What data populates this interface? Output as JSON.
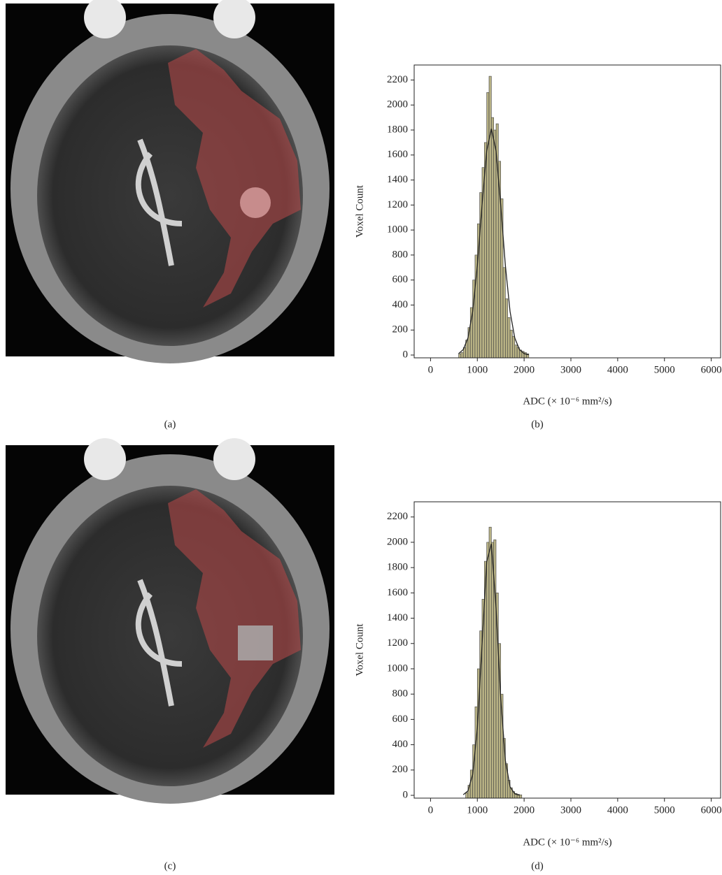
{
  "image_panels": [
    {
      "caption": "(a)"
    },
    {
      "caption": "(c)"
    }
  ],
  "chart_data": [
    {
      "type": "histogram",
      "caption": "(b)",
      "x_label": "ADC (× 10⁻⁶ mm²/s)",
      "y_label": "Voxel Count",
      "bins": [
        600,
        650,
        700,
        750,
        800,
        850,
        900,
        950,
        1000,
        1050,
        1100,
        1150,
        1200,
        1250,
        1300,
        1350,
        1400,
        1450,
        1500,
        1550,
        1600,
        1650,
        1700,
        1750,
        1800,
        1850,
        1900,
        1950,
        2000,
        2050,
        2100
      ],
      "counts": [
        10,
        20,
        60,
        120,
        220,
        380,
        600,
        800,
        1050,
        1300,
        1500,
        1700,
        2100,
        2230,
        1900,
        1800,
        1850,
        1550,
        1250,
        700,
        450,
        300,
        200,
        150,
        80,
        60,
        40,
        30,
        20,
        10
      ],
      "color": "#b7b184",
      "curve": {
        "x": [
          600,
          700,
          800,
          900,
          1000,
          1100,
          1200,
          1300,
          1400,
          1500,
          1600,
          1700,
          1800,
          1900,
          2000,
          2100
        ],
        "values": [
          11,
          44,
          137,
          347,
          714,
          1198,
          1633,
          1810,
          1633,
          1198,
          714,
          347,
          137,
          44,
          11,
          2
        ],
        "color": "#222222"
      },
      "xlim": [
        -350,
        6200
      ],
      "xticks": [
        0,
        1000,
        2000,
        3000,
        4000,
        5000,
        6000
      ],
      "ylim": [
        0,
        2320
      ],
      "yticks": [
        0,
        200,
        400,
        600,
        800,
        1000,
        1200,
        1400,
        1600,
        1800,
        2000,
        2200
      ]
    },
    {
      "type": "histogram",
      "caption": "(d)",
      "x_label": "ADC (× 10⁻⁶ mm²/s)",
      "y_label": "Voxel Count",
      "bins": [
        750,
        800,
        850,
        900,
        950,
        1000,
        1050,
        1100,
        1150,
        1200,
        1250,
        1300,
        1350,
        1400,
        1450,
        1500,
        1550,
        1600,
        1650,
        1700,
        1750,
        1800,
        1850,
        1900,
        1950
      ],
      "counts": [
        20,
        80,
        200,
        400,
        700,
        1000,
        1300,
        1550,
        1850,
        2000,
        2120,
        2000,
        2020,
        1600,
        1200,
        800,
        450,
        250,
        120,
        60,
        30,
        15,
        8,
        4
      ],
      "color": "#b7b184",
      "curve": {
        "x": [
          700,
          800,
          900,
          1000,
          1100,
          1200,
          1300,
          1400,
          1500,
          1600,
          1700,
          1800,
          1900
        ],
        "values": [
          5,
          35,
          164,
          529,
          1188,
          1846,
          1988,
          1481,
          765,
          273,
          67,
          12,
          1
        ],
        "color": "#222222"
      },
      "xlim": [
        -350,
        6200
      ],
      "xticks": [
        0,
        1000,
        2000,
        3000,
        4000,
        5000,
        6000
      ],
      "ylim": [
        0,
        2320
      ],
      "yticks": [
        0,
        200,
        400,
        600,
        800,
        1000,
        1200,
        1400,
        1600,
        1800,
        2000,
        2200
      ]
    }
  ]
}
